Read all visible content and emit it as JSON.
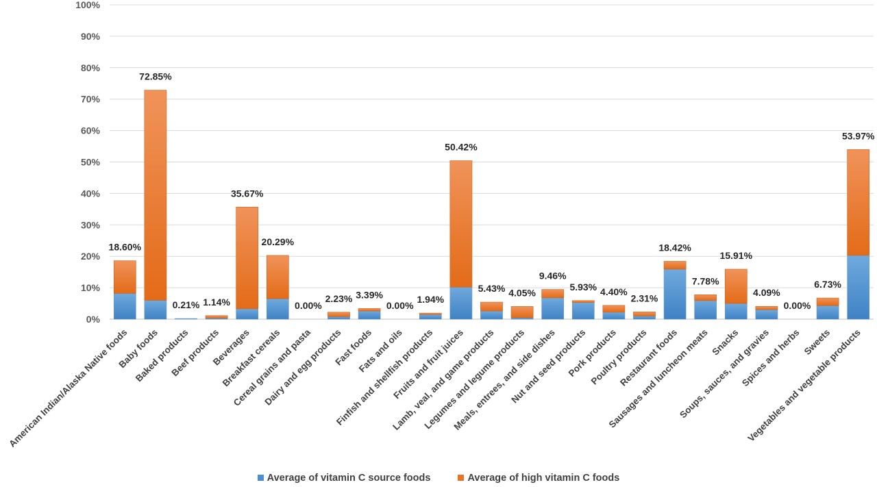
{
  "chart_data": {
    "type": "bar",
    "stacked": true,
    "title": "",
    "xlabel": "",
    "ylabel": "",
    "ylim": [
      0,
      100
    ],
    "yticks": [
      "0%",
      "10%",
      "20%",
      "30%",
      "40%",
      "50%",
      "60%",
      "70%",
      "80%",
      "90%",
      "100%"
    ],
    "grid": true,
    "legend_position": "bottom",
    "categories": [
      "American Indian/Alaska Native foods",
      "Baby foods",
      "Baked products",
      "Beef products",
      "Beverages",
      "Breakfast cereals",
      "Cereal grains and pasta",
      "Dairy and egg products",
      "Fast foods",
      "Fats and oils",
      "Finfish and shellfish products",
      "Fruits and fruit juices",
      "Lamb, veal, and game products",
      "Legumes and legume products",
      "Meals, entrees, and side dishes",
      "Nut and seed products",
      "Pork products",
      "Poultry products",
      "Restaurant foods",
      "Sausages and luncheon meats",
      "Snacks",
      "Soups, sauces, and gravies",
      "Spices and herbs",
      "Sweets",
      "Vegetables and vegetable products"
    ],
    "series": [
      {
        "name": "Average of vitamin C source foods",
        "color": "#5b9bd5",
        "values": [
          8.2,
          6.0,
          0.21,
          0.35,
          3.3,
          6.5,
          0.0,
          0.8,
          2.6,
          0.0,
          1.5,
          10.2,
          2.6,
          0.5,
          6.8,
          5.3,
          2.2,
          1.0,
          15.9,
          5.9,
          5.0,
          3.0,
          0.0,
          4.3,
          20.3
        ]
      },
      {
        "name": "Average of high vitamin C foods",
        "color": "#ed7d31",
        "values": [
          10.4,
          66.85,
          0.0,
          0.79,
          32.37,
          13.79,
          0.0,
          1.43,
          0.79,
          0.0,
          0.44,
          40.22,
          2.83,
          3.55,
          2.66,
          0.63,
          2.2,
          1.31,
          2.52,
          1.88,
          10.91,
          1.09,
          0.0,
          2.43,
          33.67
        ]
      }
    ],
    "data_labels": [
      "18.60%",
      "72.85%",
      "0.21%",
      "1.14%",
      "35.67%",
      "20.29%",
      "0.00%",
      "2.23%",
      "3.39%",
      "0.00%",
      "1.94%",
      "50.42%",
      "5.43%",
      "4.05%",
      "9.46%",
      "5.93%",
      "4.40%",
      "2.31%",
      "18.42%",
      "7.78%",
      "15.91%",
      "4.09%",
      "0.00%",
      "6.73%",
      "53.97%"
    ]
  }
}
